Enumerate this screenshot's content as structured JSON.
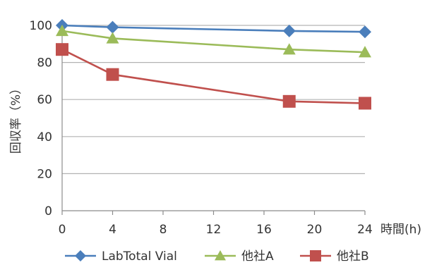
{
  "chart_data": {
    "type": "line",
    "title": "",
    "xlabel": "時間(h)",
    "ylabel": "回収率（%）",
    "x": [
      0,
      4,
      18,
      24
    ],
    "xticks": [
      "0",
      "4",
      "8",
      "12",
      "16",
      "20",
      "24"
    ],
    "xlim": [
      0,
      24
    ],
    "yticks": [
      "0",
      "20",
      "40",
      "60",
      "80",
      "100"
    ],
    "ylim": [
      0,
      100
    ],
    "grid": "horizontal",
    "legend_position": "bottom",
    "series": [
      {
        "name": "LabTotal Vial",
        "marker": "diamond",
        "color": "#4a7ebb",
        "values": [
          100,
          99,
          97,
          96.5
        ]
      },
      {
        "name": "他社A",
        "marker": "triangle",
        "color": "#9bbb59",
        "values": [
          97,
          93,
          87,
          85.5
        ]
      },
      {
        "name": "他社B",
        "marker": "square",
        "color": "#c0504d",
        "values": [
          87,
          73.5,
          59,
          58
        ]
      }
    ]
  }
}
